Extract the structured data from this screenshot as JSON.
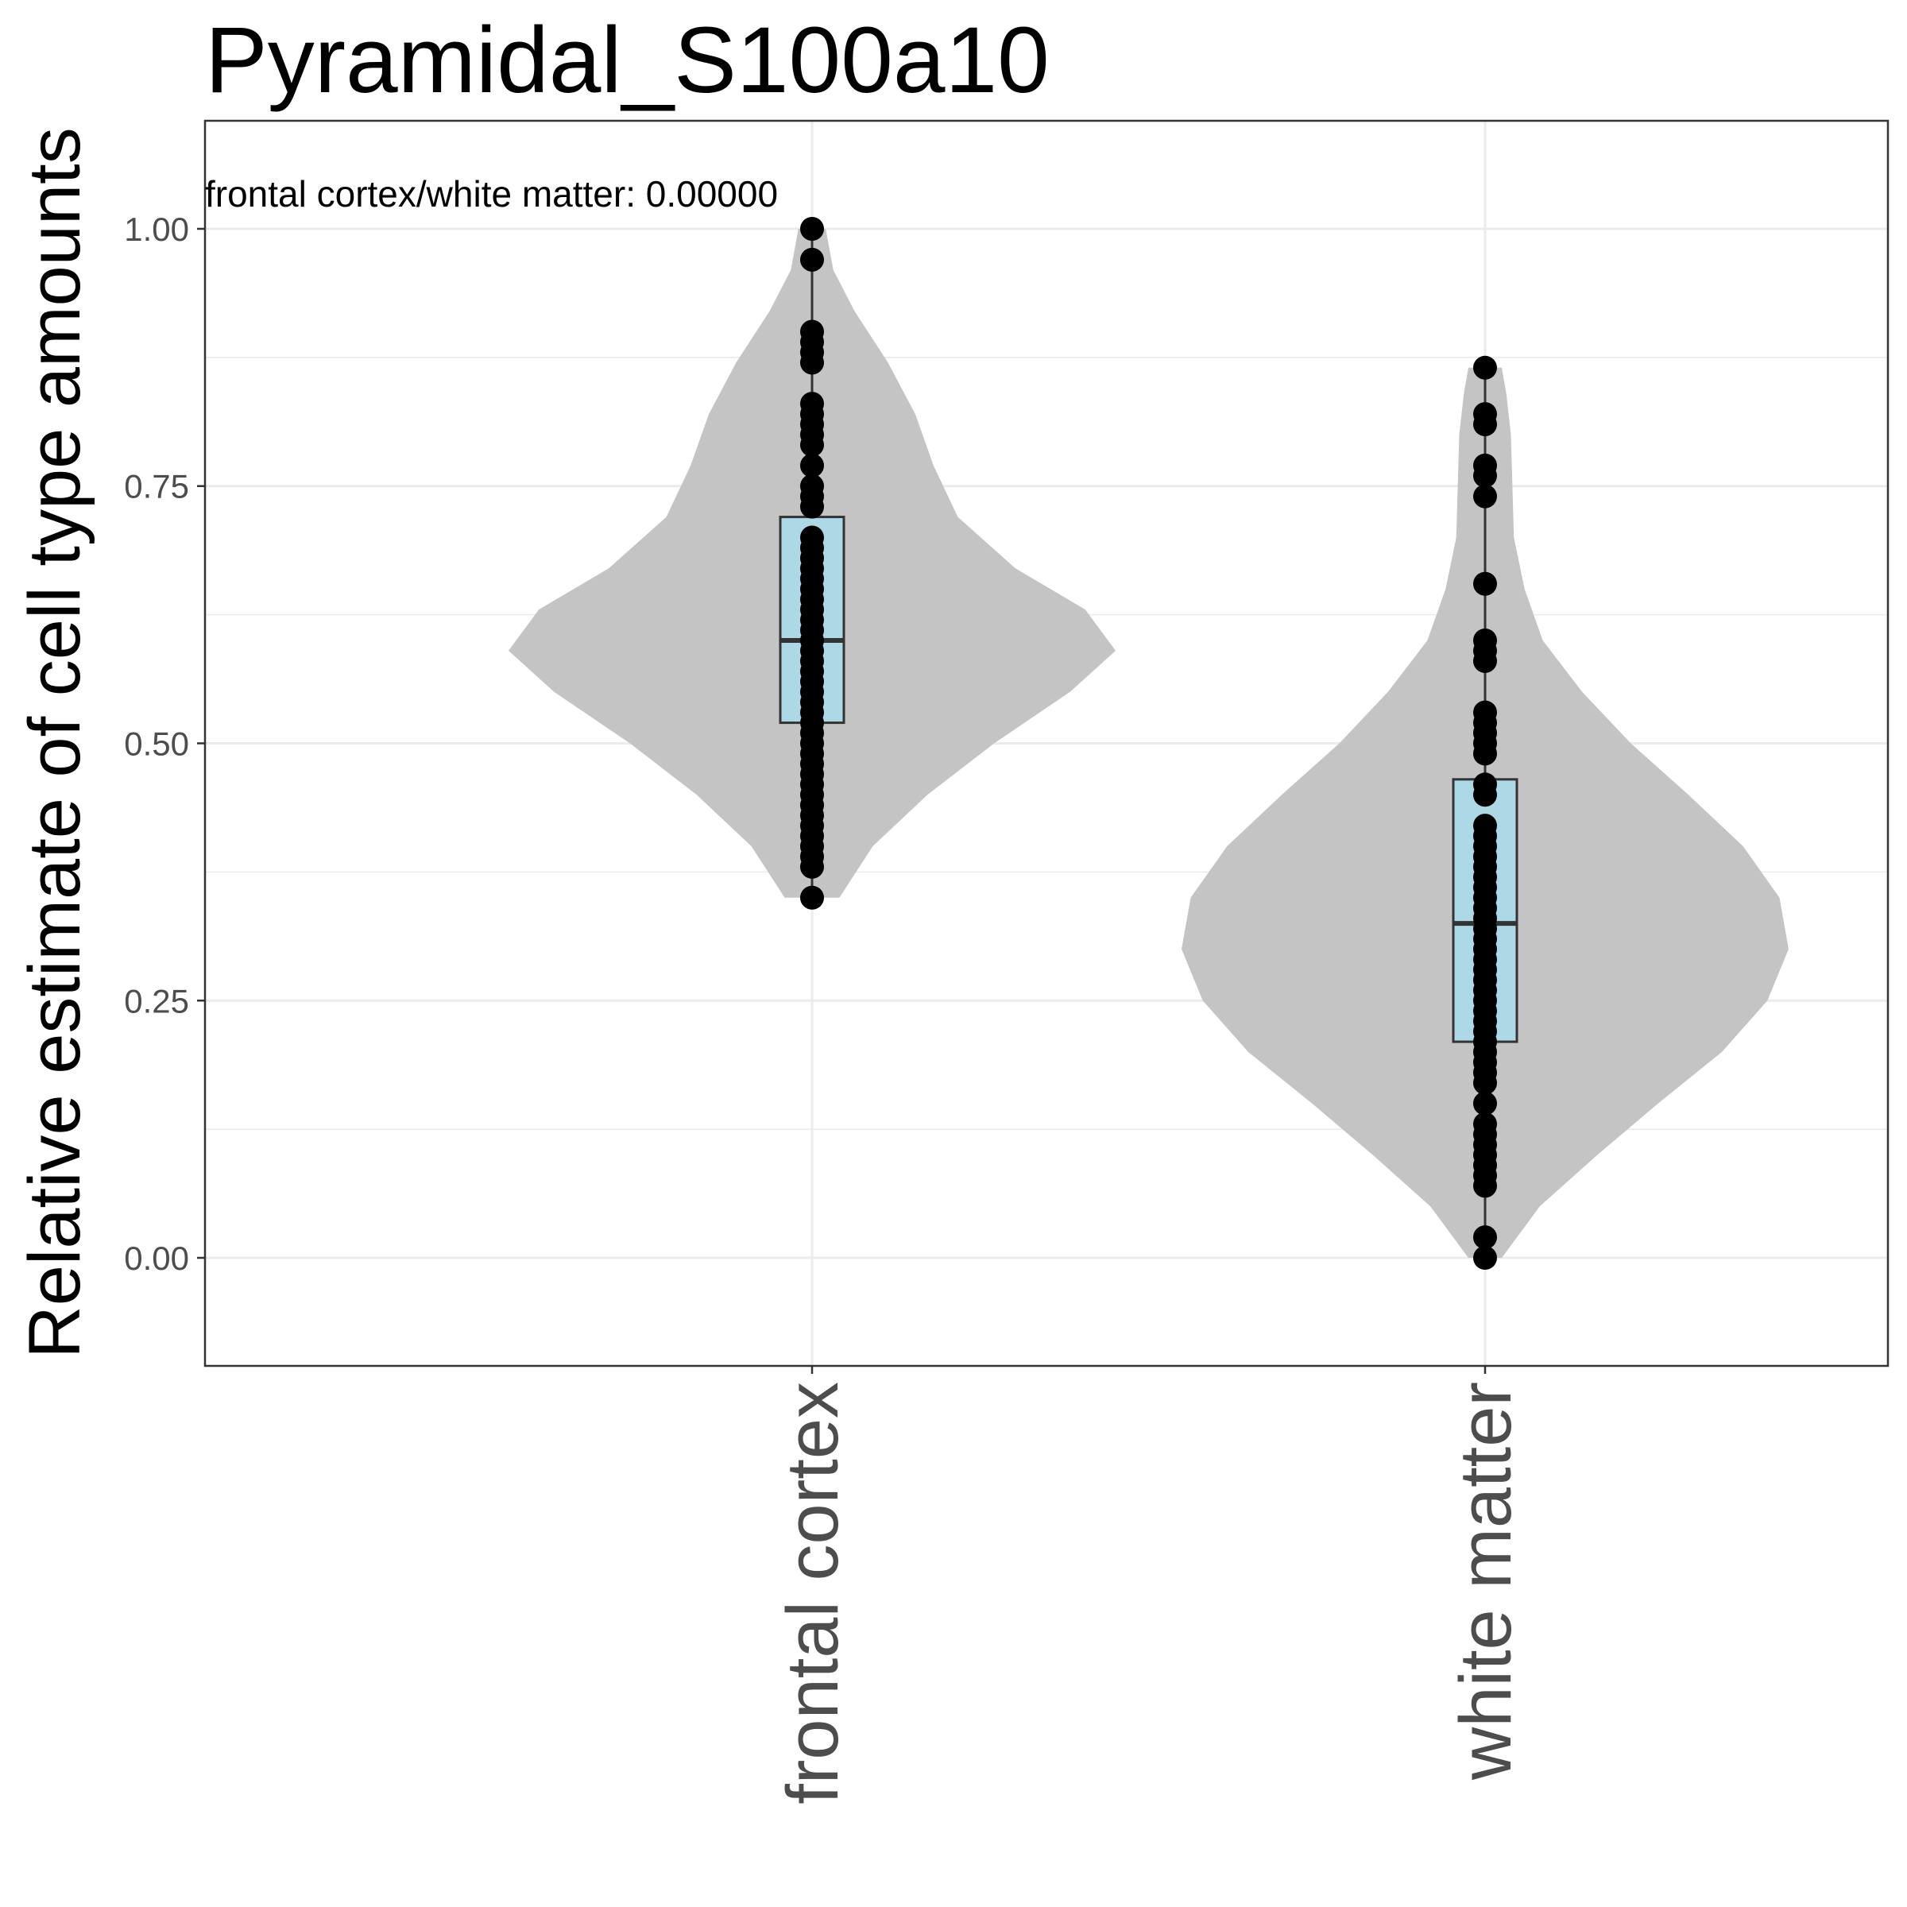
{
  "chart_data": {
    "type": "violin",
    "title": "Pyramidal_S100a10",
    "xlabel": "",
    "ylabel": "Relative estimate of cell type amounts",
    "ylim": [
      -0.105,
      1.105
    ],
    "yticks": [
      "0.00",
      "0.25",
      "0.50",
      "0.75",
      "1.00"
    ],
    "grid": true,
    "annotation": "frontal cortex/white matter: 0.00000",
    "colors": {
      "violin": "#c4c4c4",
      "box": "#add8e6",
      "box_stroke": "#333333",
      "points": "#000000",
      "panel_border": "#333333",
      "grid": "#ebebeb"
    },
    "categories": [
      "frontal cortex",
      "white matter"
    ],
    "groups": [
      {
        "name": "frontal cortex",
        "box": {
          "min": 0.35,
          "q1": 0.52,
          "median": 0.6,
          "q3": 0.72,
          "max": 1.0
        },
        "points": [
          1.0,
          0.97,
          0.9,
          0.89,
          0.88,
          0.87,
          0.83,
          0.82,
          0.81,
          0.8,
          0.79,
          0.77,
          0.75,
          0.74,
          0.73,
          0.7,
          0.69,
          0.68,
          0.67,
          0.66,
          0.65,
          0.64,
          0.63,
          0.62,
          0.61,
          0.6,
          0.59,
          0.58,
          0.57,
          0.56,
          0.55,
          0.54,
          0.53,
          0.52,
          0.51,
          0.5,
          0.49,
          0.48,
          0.47,
          0.46,
          0.45,
          0.44,
          0.43,
          0.42,
          0.41,
          0.4,
          0.39,
          0.38,
          0.35
        ],
        "violin": [
          [
            0.35,
            0.09
          ],
          [
            0.4,
            0.2
          ],
          [
            0.45,
            0.38
          ],
          [
            0.5,
            0.6
          ],
          [
            0.55,
            0.85
          ],
          [
            0.59,
            1.0
          ],
          [
            0.63,
            0.9
          ],
          [
            0.67,
            0.67
          ],
          [
            0.72,
            0.48
          ],
          [
            0.77,
            0.4
          ],
          [
            0.82,
            0.34
          ],
          [
            0.87,
            0.25
          ],
          [
            0.92,
            0.14
          ],
          [
            0.96,
            0.07
          ],
          [
            1.0,
            0.045
          ]
        ]
      },
      {
        "name": "white matter",
        "box": {
          "min": 0.0,
          "q1": 0.21,
          "median": 0.325,
          "q3": 0.465,
          "max": 0.865
        },
        "points": [
          0.865,
          0.82,
          0.81,
          0.77,
          0.76,
          0.74,
          0.655,
          0.6,
          0.59,
          0.58,
          0.53,
          0.52,
          0.51,
          0.5,
          0.49,
          0.46,
          0.45,
          0.42,
          0.41,
          0.4,
          0.39,
          0.38,
          0.37,
          0.36,
          0.35,
          0.34,
          0.33,
          0.32,
          0.31,
          0.3,
          0.29,
          0.28,
          0.27,
          0.26,
          0.25,
          0.24,
          0.23,
          0.22,
          0.21,
          0.2,
          0.19,
          0.18,
          0.17,
          0.15,
          0.13,
          0.12,
          0.11,
          0.1,
          0.09,
          0.08,
          0.07,
          0.02,
          0.0
        ],
        "violin": [
          [
            0.0,
            0.055
          ],
          [
            0.05,
            0.18
          ],
          [
            0.1,
            0.37
          ],
          [
            0.15,
            0.57
          ],
          [
            0.2,
            0.78
          ],
          [
            0.25,
            0.93
          ],
          [
            0.3,
            1.0
          ],
          [
            0.35,
            0.97
          ],
          [
            0.4,
            0.85
          ],
          [
            0.45,
            0.67
          ],
          [
            0.5,
            0.48
          ],
          [
            0.55,
            0.32
          ],
          [
            0.6,
            0.19
          ],
          [
            0.65,
            0.13
          ],
          [
            0.7,
            0.095
          ],
          [
            0.75,
            0.09
          ],
          [
            0.8,
            0.085
          ],
          [
            0.84,
            0.07
          ],
          [
            0.865,
            0.055
          ]
        ]
      }
    ]
  }
}
